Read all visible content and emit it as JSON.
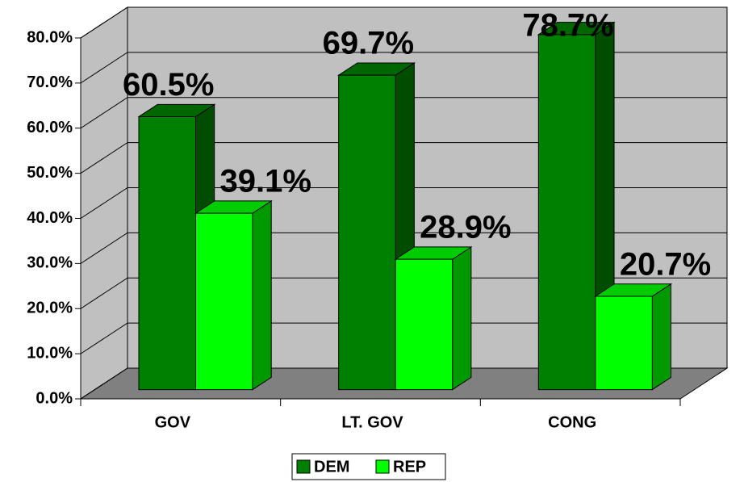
{
  "chart_data": {
    "type": "bar3d",
    "categories": [
      "GOV",
      "LT. GOV",
      "CONG"
    ],
    "series": [
      {
        "name": "DEM",
        "color": "#008000",
        "values": [
          60.5,
          69.7,
          78.7
        ],
        "value_labels": [
          "60.5%",
          "69.7%",
          "78.7%"
        ]
      },
      {
        "name": "REP",
        "color": "#00ff00",
        "values": [
          39.1,
          28.9,
          20.7
        ],
        "value_labels": [
          "39.1%",
          "28.9%",
          "20.7%"
        ]
      }
    ],
    "ylim": [
      0,
      80
    ],
    "yticks": [
      {
        "value": 0,
        "label": "0.0%"
      },
      {
        "value": 10,
        "label": "10.0%"
      },
      {
        "value": 20,
        "label": "20.0%"
      },
      {
        "value": 30,
        "label": "30.0%"
      },
      {
        "value": 40,
        "label": "40.0%"
      },
      {
        "value": 50,
        "label": "50.0%"
      },
      {
        "value": 60,
        "label": "60.0%"
      },
      {
        "value": 70,
        "label": "70.0%"
      },
      {
        "value": 80,
        "label": "80.0%"
      }
    ],
    "grid": true,
    "legend": "bottom"
  }
}
